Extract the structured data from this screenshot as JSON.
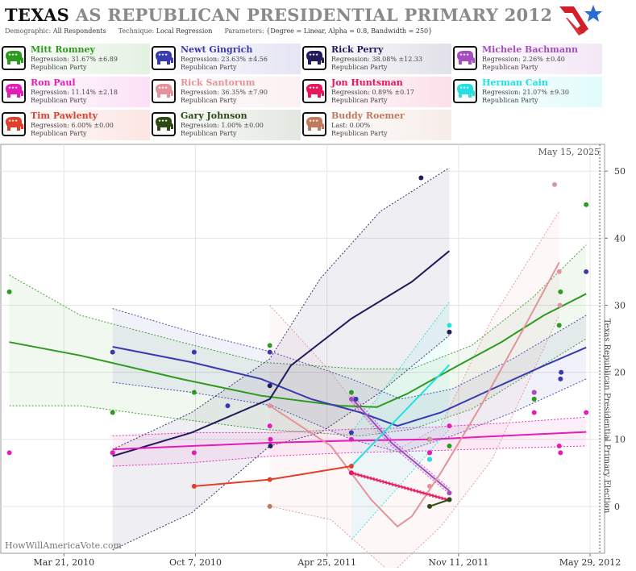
{
  "header": {
    "title_state": "TEXAS",
    "title_rest": "AS REPUBLICAN PRESIDENTIAL PRIMARY 2012",
    "demographic_label": "Demographic:",
    "demographic_value": "All Respondents",
    "technique_label": "Technique:",
    "technique_value": "Local Regression",
    "parameters_label": "Parameters:",
    "parameters_value": "{Degree = Linear, Alpha = 0.8, Bandwidth = 250}"
  },
  "candidates": [
    {
      "name": "Mitt Romney",
      "stat": "Regression: 31.67% ±6.89",
      "party": "Republican Party",
      "color": "#2e9a1f"
    },
    {
      "name": "Newt Gingrich",
      "stat": "Regression: 23.63% ±4.56",
      "party": "Republican Party",
      "color": "#3a3ab0"
    },
    {
      "name": "Rick Perry",
      "stat": "Regression: 38.08% ±12.33",
      "party": "Republican Party",
      "color": "#221c5c"
    },
    {
      "name": "Michele Bachmann",
      "stat": "Regression: 2.26% ±0.40",
      "party": "Republican Party",
      "color": "#a64dc0"
    },
    {
      "name": "Ron Paul",
      "stat": "Regression: 11.14% ±2.18",
      "party": "Republican Party",
      "color": "#e41cb8"
    },
    {
      "name": "Rick Santorum",
      "stat": "Regression: 36.35% ±7.90",
      "party": "Republican Party",
      "color": "#e3949a"
    },
    {
      "name": "Jon Huntsman",
      "stat": "Regression: 0.89% ±0.17",
      "party": "Republican Party",
      "color": "#e8175d"
    },
    {
      "name": "Herman Cain",
      "stat": "Regression: 21.07% ±9.30",
      "party": "Republican Party",
      "color": "#25e0e0"
    },
    {
      "name": "Tim Pawlenty",
      "stat": "Regression: 6.00% ±0.00",
      "party": "Republican Party",
      "color": "#e0402a"
    },
    {
      "name": "Gary Johnson",
      "stat": "Regression: 1.00% ±0.00",
      "party": "Republican Party",
      "color": "#2d4a14"
    },
    {
      "name": "Buddy Roemer",
      "stat": "Last: 0.00%",
      "party": "Republican Party",
      "color": "#c07a5c"
    }
  ],
  "chart_data": {
    "type": "line",
    "x_tick_labels": [
      "Mar 21, 2010",
      "Oct 7, 2010",
      "Apr 25, 2011",
      "Nov 11, 2011",
      "May 29, 2012"
    ],
    "x_ticks": [
      "2010-03-21",
      "2010-10-07",
      "2011-04-25",
      "2011-11-11",
      "2012-05-29"
    ],
    "x_range": [
      "2009-12-15",
      "2012-06-20"
    ],
    "y_ticks": [
      0,
      10,
      20,
      30,
      40,
      50
    ],
    "y_range": [
      -7,
      54
    ],
    "y_axis_position": "right",
    "date_label": "May 15, 2025",
    "election_marker_date": "2012-05-29",
    "election_label": "Texas Republican Presidential Primary Election",
    "watermark": "HowWillAmericaVote.com",
    "series": [
      {
        "name": "Mitt Romney",
        "color": "#2e9a1f",
        "points": [
          [
            "2009-12-28",
            32
          ],
          [
            "2010-06-03",
            14
          ],
          [
            "2010-10-05",
            17
          ],
          [
            "2011-01-28",
            24
          ],
          [
            "2011-06-01",
            17
          ],
          [
            "2011-09-28",
            10
          ],
          [
            "2011-10-28",
            9
          ],
          [
            "2012-03-05",
            16
          ],
          [
            "2012-04-12",
            27
          ],
          [
            "2012-04-14",
            32
          ],
          [
            "2012-05-23",
            45
          ]
        ],
        "line": [
          [
            "2009-12-28",
            24.5
          ],
          [
            "2010-04-15",
            22.5
          ],
          [
            "2010-09-15",
            19
          ],
          [
            "2011-01-15",
            16.5
          ],
          [
            "2011-05-15",
            15
          ],
          [
            "2011-07-10",
            14.8
          ],
          [
            "2011-08-25",
            16.8
          ],
          [
            "2011-11-01",
            20.5
          ],
          [
            "2012-01-15",
            24.5
          ],
          [
            "2012-03-20",
            28.5
          ],
          [
            "2012-05-23",
            31.7
          ]
        ],
        "upper": [
          [
            "2009-12-28",
            34.5
          ],
          [
            "2010-04-15",
            28.5
          ],
          [
            "2010-09-15",
            24.5
          ],
          [
            "2011-01-15",
            21.5
          ],
          [
            "2011-06-15",
            20.5
          ],
          [
            "2011-09-01",
            20.5
          ],
          [
            "2011-12-01",
            24
          ],
          [
            "2012-03-01",
            31
          ],
          [
            "2012-05-23",
            39
          ]
        ],
        "lower": [
          [
            "2009-12-28",
            15
          ],
          [
            "2010-04-15",
            15
          ],
          [
            "2010-09-15",
            13
          ],
          [
            "2011-01-15",
            11.5
          ],
          [
            "2011-06-15",
            10.5
          ],
          [
            "2011-09-01",
            11.5
          ],
          [
            "2011-12-01",
            14.5
          ],
          [
            "2012-03-01",
            20
          ],
          [
            "2012-05-23",
            25
          ]
        ]
      },
      {
        "name": "Newt Gingrich",
        "color": "#3a3ab0",
        "points": [
          [
            "2010-06-03",
            23
          ],
          [
            "2010-10-05",
            23
          ],
          [
            "2010-11-25",
            15
          ],
          [
            "2011-01-28",
            23
          ],
          [
            "2011-06-01",
            11
          ],
          [
            "2011-06-08",
            16
          ],
          [
            "2011-09-28",
            8
          ],
          [
            "2012-03-05",
            17
          ],
          [
            "2012-04-14",
            19
          ],
          [
            "2012-04-15",
            20
          ],
          [
            "2012-05-23",
            35
          ]
        ],
        "line": [
          [
            "2010-06-03",
            23.8
          ],
          [
            "2010-10-01",
            21.5
          ],
          [
            "2011-01-15",
            19
          ],
          [
            "2011-04-01",
            16
          ],
          [
            "2011-06-15",
            14
          ],
          [
            "2011-08-10",
            12
          ],
          [
            "2011-10-15",
            14
          ],
          [
            "2012-01-01",
            17.5
          ],
          [
            "2012-03-20",
            21
          ],
          [
            "2012-05-23",
            23.7
          ]
        ],
        "upper": [
          [
            "2010-06-03",
            29.5
          ],
          [
            "2010-10-01",
            26
          ],
          [
            "2011-02-01",
            23
          ],
          [
            "2011-06-01",
            19
          ],
          [
            "2011-08-15",
            16
          ],
          [
            "2011-11-01",
            17.5
          ],
          [
            "2012-02-01",
            22
          ],
          [
            "2012-05-23",
            28.5
          ]
        ],
        "lower": [
          [
            "2010-06-03",
            18.5
          ],
          [
            "2010-10-01",
            17
          ],
          [
            "2011-02-01",
            15
          ],
          [
            "2011-06-01",
            10
          ],
          [
            "2011-08-15",
            8
          ],
          [
            "2011-11-01",
            10.5
          ],
          [
            "2012-02-01",
            14
          ],
          [
            "2012-05-23",
            19
          ]
        ]
      },
      {
        "name": "Rick Perry",
        "color": "#221c5c",
        "points": [
          [
            "2010-06-03",
            8
          ],
          [
            "2011-01-28",
            18
          ],
          [
            "2011-01-29",
            9
          ],
          [
            "2011-09-15",
            49
          ],
          [
            "2011-10-28",
            26
          ]
        ],
        "line": [
          [
            "2010-06-03",
            7.5
          ],
          [
            "2010-10-01",
            11
          ],
          [
            "2011-01-28",
            16
          ],
          [
            "2011-03-01",
            21
          ],
          [
            "2011-06-01",
            28
          ],
          [
            "2011-09-01",
            33.5
          ],
          [
            "2011-10-28",
            38.1
          ]
        ],
        "upper": [
          [
            "2010-06-03",
            8.5
          ],
          [
            "2010-10-01",
            14
          ],
          [
            "2011-01-28",
            22
          ],
          [
            "2011-04-15",
            34
          ],
          [
            "2011-07-15",
            44
          ],
          [
            "2011-10-28",
            50.5
          ]
        ],
        "lower": [
          [
            "2010-06-03",
            -6.5
          ],
          [
            "2010-10-01",
            -1
          ],
          [
            "2011-01-28",
            9
          ],
          [
            "2011-04-15",
            11
          ],
          [
            "2011-07-15",
            17
          ],
          [
            "2011-10-28",
            25.5
          ]
        ]
      },
      {
        "name": "Michele Bachmann",
        "color": "#a64dc0",
        "points": [
          [
            "2011-06-01",
            16
          ],
          [
            "2011-09-28",
            7
          ],
          [
            "2011-10-28",
            2
          ],
          [
            "2012-03-05",
            17
          ]
        ],
        "line": [
          [
            "2011-06-01",
            16.2
          ],
          [
            "2011-08-01",
            9.5
          ],
          [
            "2011-10-28",
            2.3
          ]
        ],
        "upper": [
          [
            "2011-06-01",
            16.8
          ],
          [
            "2011-08-01",
            10
          ],
          [
            "2011-10-28",
            2.7
          ]
        ],
        "lower": [
          [
            "2011-06-01",
            15.6
          ],
          [
            "2011-08-01",
            9
          ],
          [
            "2011-10-28",
            1.9
          ]
        ]
      },
      {
        "name": "Ron Paul",
        "color": "#e41cb8",
        "points": [
          [
            "2009-12-28",
            8
          ],
          [
            "2010-06-03",
            8
          ],
          [
            "2010-10-05",
            8
          ],
          [
            "2011-01-28",
            12
          ],
          [
            "2011-01-29",
            10
          ],
          [
            "2011-06-01",
            10
          ],
          [
            "2011-09-28",
            8
          ],
          [
            "2011-10-28",
            12
          ],
          [
            "2012-03-05",
            14
          ],
          [
            "2012-04-12",
            9
          ],
          [
            "2012-04-14",
            8
          ],
          [
            "2012-05-23",
            14
          ]
        ],
        "line": [
          [
            "2010-06-03",
            8.5
          ],
          [
            "2010-10-01",
            9
          ],
          [
            "2011-02-01",
            9.5
          ],
          [
            "2011-06-01",
            9.8
          ],
          [
            "2011-10-01",
            10
          ],
          [
            "2012-01-15",
            10.5
          ],
          [
            "2012-05-23",
            11.1
          ]
        ],
        "upper": [
          [
            "2010-06-03",
            10.5
          ],
          [
            "2010-10-01",
            11
          ],
          [
            "2011-02-01",
            11
          ],
          [
            "2011-06-01",
            11.5
          ],
          [
            "2011-10-01",
            11.8
          ],
          [
            "2012-02-01",
            12.5
          ],
          [
            "2012-05-23",
            13.3
          ]
        ],
        "lower": [
          [
            "2010-06-03",
            6
          ],
          [
            "2010-10-01",
            6.5
          ],
          [
            "2011-02-01",
            7.5
          ],
          [
            "2011-06-01",
            8
          ],
          [
            "2011-10-01",
            8.3
          ],
          [
            "2012-02-01",
            8.7
          ],
          [
            "2012-05-23",
            9
          ]
        ]
      },
      {
        "name": "Rick Santorum",
        "color": "#e3949a",
        "points": [
          [
            "2011-01-28",
            15
          ],
          [
            "2011-09-28",
            3
          ],
          [
            "2011-09-29",
            10
          ],
          [
            "2012-04-05",
            48
          ],
          [
            "2012-04-12",
            35
          ],
          [
            "2012-04-13",
            30
          ]
        ],
        "line": [
          [
            "2011-01-28",
            15
          ],
          [
            "2011-05-01",
            9
          ],
          [
            "2011-07-01",
            1
          ],
          [
            "2011-08-10",
            -3
          ],
          [
            "2011-09-01",
            -1.5
          ],
          [
            "2011-10-15",
            5
          ],
          [
            "2011-12-15",
            15
          ],
          [
            "2012-02-15",
            26
          ],
          [
            "2012-04-12",
            36.4
          ]
        ],
        "upper": [
          [
            "2011-01-28",
            30
          ],
          [
            "2011-05-01",
            20
          ],
          [
            "2011-08-01",
            8
          ],
          [
            "2011-10-15",
            12
          ],
          [
            "2012-01-01",
            28
          ],
          [
            "2012-04-12",
            44
          ]
        ],
        "lower": [
          [
            "2011-01-28",
            0
          ],
          [
            "2011-05-01",
            -2
          ],
          [
            "2011-08-01",
            -10
          ],
          [
            "2011-10-15",
            -3
          ],
          [
            "2012-01-01",
            7
          ],
          [
            "2012-04-12",
            28.5
          ]
        ]
      },
      {
        "name": "Jon Huntsman",
        "color": "#e8175d",
        "points": [
          [
            "2011-06-01",
            5
          ],
          [
            "2011-10-28",
            1
          ]
        ],
        "line": [
          [
            "2011-06-01",
            5
          ],
          [
            "2011-10-28",
            0.9
          ]
        ],
        "upper": [
          [
            "2011-06-01",
            5.2
          ],
          [
            "2011-10-28",
            1.1
          ]
        ],
        "lower": [
          [
            "2011-06-01",
            4.8
          ],
          [
            "2011-10-28",
            0.7
          ]
        ]
      },
      {
        "name": "Herman Cain",
        "color": "#25e0e0",
        "points": [
          [
            "2011-09-28",
            7
          ],
          [
            "2011-10-28",
            27
          ]
        ],
        "line": [
          [
            "2011-06-01",
            6
          ],
          [
            "2011-10-28",
            21.1
          ]
        ],
        "upper": [
          [
            "2011-06-01",
            11
          ],
          [
            "2011-10-28",
            30.5
          ]
        ],
        "lower": [
          [
            "2011-06-01",
            -5
          ],
          [
            "2011-10-28",
            11.5
          ]
        ]
      },
      {
        "name": "Tim Pawlenty",
        "color": "#e0402a",
        "points": [
          [
            "2010-10-05",
            3
          ],
          [
            "2011-01-28",
            4
          ],
          [
            "2011-06-01",
            6
          ]
        ],
        "line": [
          [
            "2010-10-05",
            3
          ],
          [
            "2011-01-28",
            4
          ],
          [
            "2011-06-01",
            6
          ]
        ],
        "upper": [
          [
            "2010-10-05",
            3
          ],
          [
            "2011-01-28",
            4
          ],
          [
            "2011-06-01",
            6
          ]
        ],
        "lower": [
          [
            "2010-10-05",
            3
          ],
          [
            "2011-01-28",
            4
          ],
          [
            "2011-06-01",
            6
          ]
        ]
      },
      {
        "name": "Gary Johnson",
        "color": "#2d4a14",
        "points": [
          [
            "2011-09-28",
            0
          ],
          [
            "2011-10-28",
            1
          ]
        ],
        "line": [
          [
            "2011-09-28",
            0
          ],
          [
            "2011-10-28",
            1
          ]
        ],
        "upper": [
          [
            "2011-09-28",
            0
          ],
          [
            "2011-10-28",
            1
          ]
        ],
        "lower": [
          [
            "2011-09-28",
            0
          ],
          [
            "2011-10-28",
            1
          ]
        ]
      },
      {
        "name": "Buddy Roemer",
        "color": "#c07a5c",
        "points": [
          [
            "2011-01-28",
            0
          ]
        ],
        "line": [],
        "upper": [],
        "lower": []
      }
    ]
  }
}
